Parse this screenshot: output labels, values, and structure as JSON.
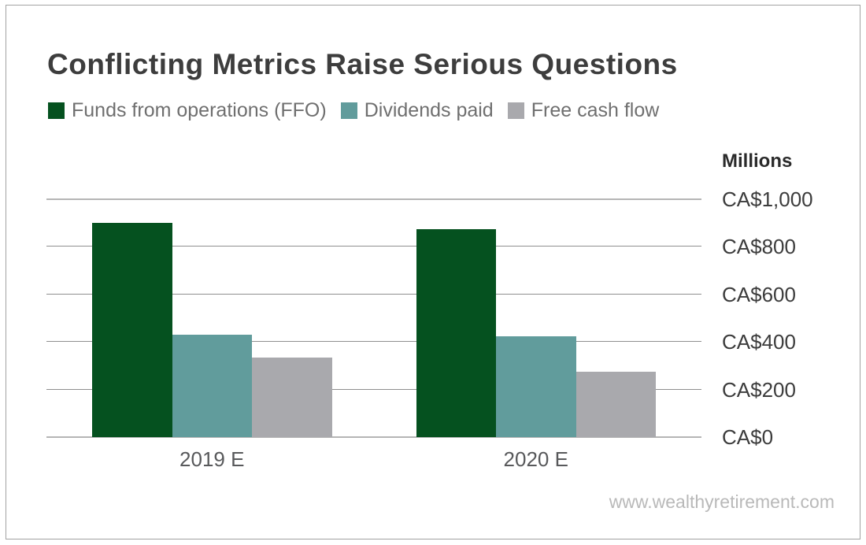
{
  "title": "Conflicting Metrics Raise Serious Questions",
  "legend": [
    {
      "label": "Funds from operations (FFO)",
      "color": "#05511f"
    },
    {
      "label": "Dividends paid",
      "color": "#619c9c"
    },
    {
      "label": "Free cash flow",
      "color": "#a9a9ad"
    }
  ],
  "axis": {
    "unit_label": "Millions"
  },
  "watermark": "www.wealthyretirement.com",
  "colors": {
    "ffo_green": "#05511f",
    "dividends_teal": "#619c9c",
    "fcf_gray": "#a9a9ad",
    "gridline": "#8f8f8f",
    "baseline": "#b5b5b5",
    "title_text": "#3d3d3d",
    "legend_text": "#6f6f6f",
    "watermark_text": "#b9b9b9"
  },
  "chart_data": {
    "type": "bar",
    "categories": [
      "2019 E",
      "2020 E"
    ],
    "series": [
      {
        "name": "Funds from operations (FFO)",
        "color": "#05511f",
        "values": [
          900,
          875
        ]
      },
      {
        "name": "Dividends paid",
        "color": "#619c9c",
        "values": [
          430,
          425
        ]
      },
      {
        "name": "Free cash flow",
        "color": "#a9a9ad",
        "values": [
          335,
          275
        ]
      }
    ],
    "title": "Conflicting Metrics Raise Serious Questions",
    "xlabel": "",
    "ylabel": "Millions",
    "ylim": [
      0,
      1000
    ],
    "yticks": [
      0,
      200,
      400,
      600,
      800,
      1000
    ],
    "ytick_labels": [
      "CA$0",
      "CA$200",
      "CA$400",
      "CA$600",
      "CA$800",
      "CA$1,000"
    ],
    "legend_position": "top-left",
    "grid": true,
    "currency": "CAD",
    "units": "millions"
  }
}
